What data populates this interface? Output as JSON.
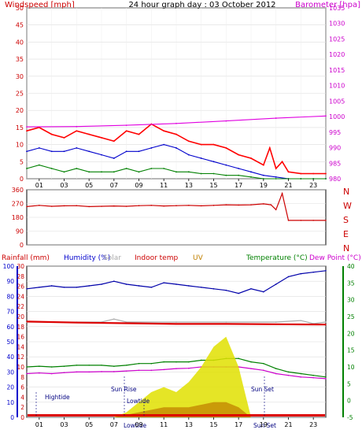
{
  "chart_data": [
    {
      "type": "line",
      "title": "24 hour graph day : 03 October 2012",
      "y_left_label": "Windspeed [mph]",
      "y_right_label": "Barometer [hpa]",
      "ylim_left": [
        0,
        50
      ],
      "ylim_right": [
        980,
        1035
      ],
      "left_ticks": [
        "0",
        "5",
        "10",
        "15",
        "20",
        "25",
        "30",
        "35",
        "40",
        "45",
        "50"
      ],
      "right_ticks": [
        "980",
        "985",
        "990",
        "995",
        "1000",
        "1005",
        "1010",
        "1015",
        "1020",
        "1025",
        "1030",
        "1035"
      ],
      "x_ticks": [
        "01",
        "03",
        "05",
        "07",
        "09",
        "11",
        "13",
        "15",
        "17",
        "19",
        "21",
        "23"
      ],
      "series": [
        {
          "color": "#ff0000",
          "kind": "wind gust (mph)",
          "hours": [
            0,
            1,
            2,
            3,
            4,
            5,
            6,
            7,
            8,
            9,
            10,
            11,
            12,
            13,
            14,
            15,
            16,
            17,
            18,
            19,
            19.5,
            20,
            20.5,
            21,
            22,
            23,
            24
          ],
          "values": [
            14,
            15,
            13,
            12,
            14,
            13,
            12,
            11,
            14,
            13,
            16,
            14,
            13,
            11,
            10,
            10,
            9,
            7,
            6,
            4,
            9,
            3,
            5,
            2,
            1.5,
            1.5,
            1.5
          ]
        },
        {
          "color": "#0000cc",
          "kind": "average wind (mph)",
          "hours": [
            0,
            1,
            2,
            3,
            4,
            5,
            6,
            7,
            8,
            9,
            10,
            11,
            12,
            13,
            14,
            15,
            16,
            17,
            18,
            19,
            20,
            21,
            22,
            23,
            24
          ],
          "values": [
            8,
            9,
            8,
            8,
            9,
            8,
            7,
            6,
            8,
            8,
            9,
            10,
            9,
            7,
            6,
            5,
            4,
            3,
            2,
            1,
            0.5,
            0,
            0,
            0,
            0
          ]
        },
        {
          "color": "#008000",
          "kind": "wind lull (mph)",
          "hours": [
            0,
            1,
            2,
            3,
            4,
            5,
            6,
            7,
            8,
            9,
            10,
            11,
            12,
            13,
            14,
            15,
            16,
            17,
            18,
            19,
            20,
            21,
            22,
            23,
            24
          ],
          "values": [
            3,
            4,
            3,
            2,
            3,
            2,
            2,
            2,
            3,
            2,
            3,
            3,
            2,
            2,
            1.5,
            1.5,
            1,
            1,
            0.5,
            0,
            0,
            0,
            0,
            0,
            0
          ]
        },
        {
          "color": "#e000e0",
          "kind": "barometer (hpa)",
          "axis": "right",
          "hours": [
            0,
            4,
            8,
            12,
            16,
            20,
            24
          ],
          "values": [
            996.7,
            996.8,
            997.2,
            997.8,
            998.6,
            999.5,
            1000.2
          ]
        }
      ]
    },
    {
      "type": "line",
      "right_labels": [
        "N",
        "W",
        "S",
        "E",
        "N"
      ],
      "left_ticks": [
        "0",
        "90",
        "180",
        "270",
        "360"
      ],
      "ylim": [
        0,
        360
      ],
      "series": [
        {
          "color": "#cc0000",
          "kind": "wind direction (deg)",
          "hours": [
            0,
            1,
            2,
            3,
            4,
            5,
            6,
            7,
            8,
            9,
            10,
            11,
            12,
            13,
            14,
            15,
            16,
            17,
            18,
            19,
            19.6,
            20,
            20.5,
            21,
            22,
            23,
            24
          ],
          "values": [
            250,
            258,
            252,
            255,
            256,
            250,
            252,
            254,
            252,
            256,
            258,
            254,
            256,
            258,
            255,
            258,
            262,
            260,
            262,
            268,
            262,
            230,
            336,
            160,
            160,
            160,
            160
          ]
        }
      ]
    },
    {
      "type": "line",
      "header_labels": [
        {
          "text": "Rainfall (mm)",
          "color": "#cc0000"
        },
        {
          "text": "Humidity (%)",
          "color": "#0000cc"
        },
        {
          "text": "Solar",
          "color": "#aaaaaa"
        },
        {
          "text": "Indoor temp",
          "color": "#cc0000"
        },
        {
          "text": "UV",
          "color": "#c08000"
        },
        {
          "text": "Temperature (°C)",
          "color": "#008000"
        },
        {
          "text": "Dew Point (°C)",
          "color": "#cc00cc"
        }
      ],
      "humidity_ticks": [
        "0",
        "10",
        "20",
        "30",
        "40",
        "50",
        "60",
        "70",
        "80",
        "90",
        "100"
      ],
      "rain_ticks": [
        "0",
        "2",
        "4",
        "6",
        "8",
        "10",
        "12",
        "14",
        "16",
        "18",
        "20",
        "22",
        "24",
        "26",
        "28",
        "30"
      ],
      "temp_ticks": [
        "-5",
        "0",
        "5",
        "10",
        "15",
        "20",
        "25",
        "30",
        "35",
        "40"
      ],
      "ylim_humidity": [
        0,
        100
      ],
      "ylim_temp": [
        -5,
        40
      ],
      "annotations": [
        "Hightide",
        "Sun Rise",
        "Lowtide",
        "Sun Set",
        "Lowtide",
        "Sun Set"
      ],
      "series": [
        {
          "color": "#0000aa",
          "kind": "humidity (%)",
          "hours": [
            0,
            1,
            2,
            3,
            4,
            5,
            6,
            7,
            8,
            9,
            10,
            11,
            12,
            13,
            14,
            15,
            16,
            17,
            18,
            19,
            20,
            21,
            22,
            23,
            24
          ],
          "values": [
            85,
            86,
            87,
            86,
            86,
            87,
            88,
            90,
            88,
            87,
            86,
            89,
            88,
            87,
            86,
            85,
            84,
            82,
            85,
            83,
            88,
            93,
            95,
            96,
            97
          ]
        },
        {
          "color": "#aaaaaa",
          "kind": "solar (scaled)",
          "hours": [
            0,
            2,
            4,
            6,
            7,
            8,
            12,
            16,
            20,
            22,
            23,
            24
          ],
          "values": [
            63,
            63,
            63,
            63,
            65,
            63,
            63,
            63,
            63,
            64,
            62,
            63
          ]
        },
        {
          "color": "#dd0000",
          "kind": "indoor temp (°C)",
          "hours": [
            0,
            4,
            8,
            12,
            16,
            20,
            24
          ],
          "values": [
            23.5,
            23.2,
            23.0,
            22.8,
            22.8,
            22.7,
            22.6
          ]
        },
        {
          "color": "#008000",
          "kind": "temperature (°C)",
          "hours": [
            0,
            1,
            2,
            3,
            4,
            5,
            6,
            7,
            8,
            9,
            10,
            11,
            12,
            13,
            14,
            15,
            16,
            17,
            18,
            19,
            20,
            21,
            22,
            23,
            24
          ],
          "values": [
            10,
            10.2,
            10,
            10.2,
            10.5,
            10.5,
            10.5,
            10.2,
            10.5,
            11,
            11,
            11.5,
            11.5,
            11.5,
            12,
            12,
            12.5,
            12.5,
            11.5,
            11,
            9.5,
            8.5,
            8,
            7.5,
            7
          ]
        },
        {
          "color": "#cc00cc",
          "kind": "dew point (°C)",
          "hours": [
            0,
            1,
            2,
            3,
            4,
            5,
            6,
            7,
            8,
            9,
            10,
            11,
            12,
            13,
            14,
            15,
            16,
            17,
            18,
            19,
            20,
            21,
            22,
            23,
            24
          ],
          "values": [
            8,
            8.2,
            8,
            8.3,
            8.5,
            8.5,
            8.6,
            8.6,
            8.8,
            9,
            9,
            9.2,
            9.5,
            9.6,
            10,
            10,
            10,
            10,
            9.5,
            9,
            8,
            7.5,
            7,
            6.8,
            6.5
          ]
        },
        {
          "color": "#e0e000",
          "kind": "solar radiation (fill)",
          "hours": [
            7,
            8,
            9,
            10,
            11,
            12,
            13,
            14,
            15,
            16,
            17,
            18
          ],
          "values": [
            0,
            1,
            3,
            5,
            6,
            5,
            7,
            10,
            14,
            16,
            10,
            0
          ]
        },
        {
          "color": "#c08000",
          "kind": "UV (fill)",
          "hours": [
            7,
            9,
            11,
            13,
            15,
            16,
            17,
            18
          ],
          "values": [
            0,
            1,
            2,
            2,
            3,
            3,
            2,
            0
          ]
        }
      ]
    }
  ]
}
